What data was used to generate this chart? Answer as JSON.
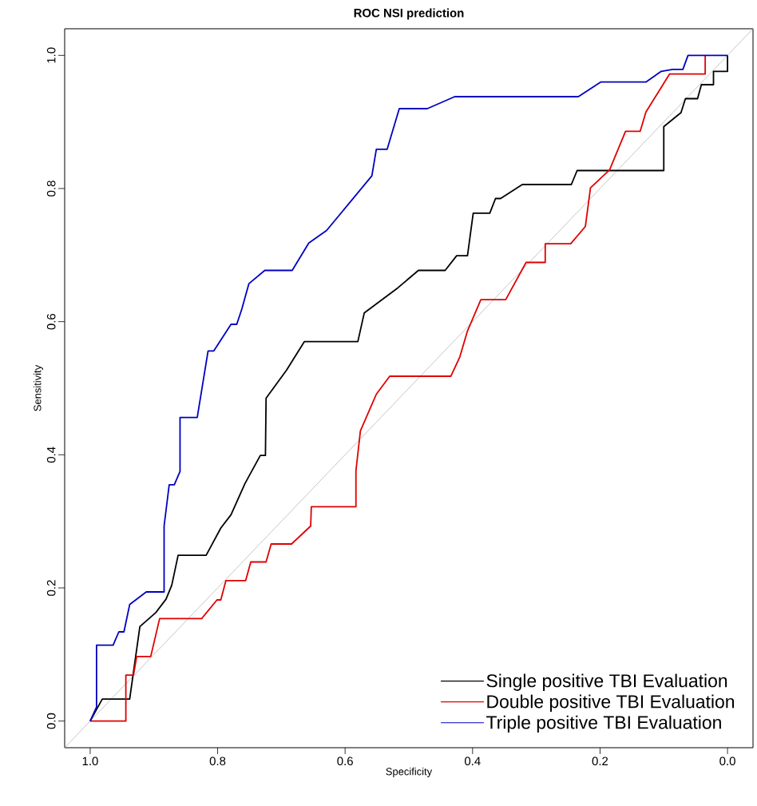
{
  "chart_data": {
    "type": "line",
    "title": "ROC NSI prediction",
    "xlabel": "Specificity",
    "ylabel": "Sensitivity",
    "xlim": [
      1.04,
      -0.04
    ],
    "ylim": [
      -0.04,
      1.04
    ],
    "xticks": [
      {
        "value": 1.0,
        "label": "1.0"
      },
      {
        "value": 0.8,
        "label": "0.8"
      },
      {
        "value": 0.6,
        "label": "0.6"
      },
      {
        "value": 0.4,
        "label": "0.4"
      },
      {
        "value": 0.2,
        "label": "0.2"
      },
      {
        "value": 0.0,
        "label": "0.0"
      }
    ],
    "yticks": [
      {
        "value": 0.0,
        "label": "0.0"
      },
      {
        "value": 0.2,
        "label": "0.2"
      },
      {
        "value": 0.4,
        "label": "0.4"
      },
      {
        "value": 0.6,
        "label": "0.6"
      },
      {
        "value": 0.8,
        "label": "0.8"
      },
      {
        "value": 1.0,
        "label": "1.0"
      }
    ],
    "legend": "bottom right",
    "marker": "none",
    "line_style": "solid",
    "series": [
      {
        "color": "#a0a0a0",
        "x": [
          1.04,
          -0.04
        ],
        "values": [
          -0.04,
          1.04
        ]
      },
      {
        "name": "Single positive TBI Evaluation",
        "color": "#000000",
        "x": [
          1.0,
          0.981,
          0.938,
          0.922,
          0.897,
          0.881,
          0.872,
          0.862,
          0.818,
          0.795,
          0.779,
          0.757,
          0.733,
          0.725,
          0.724,
          0.692,
          0.664,
          0.58,
          0.57,
          0.517,
          0.485,
          0.443,
          0.425,
          0.408,
          0.399,
          0.373,
          0.364,
          0.356,
          0.322,
          0.245,
          0.236,
          0.1,
          0.1,
          0.073,
          0.066,
          0.047,
          0.041,
          0.022,
          0.022,
          0.0,
          0.0
        ],
        "values": [
          0.0,
          0.033,
          0.033,
          0.142,
          0.163,
          0.183,
          0.204,
          0.249,
          0.249,
          0.29,
          0.31,
          0.357,
          0.399,
          0.399,
          0.485,
          0.527,
          0.57,
          0.57,
          0.613,
          0.651,
          0.677,
          0.677,
          0.699,
          0.699,
          0.763,
          0.763,
          0.785,
          0.785,
          0.806,
          0.806,
          0.827,
          0.827,
          0.893,
          0.914,
          0.935,
          0.935,
          0.956,
          0.956,
          0.976,
          0.976,
          1.0
        ]
      },
      {
        "name": "Double positive TBI Evaluation",
        "color": "#e00000",
        "x": [
          1.0,
          0.944,
          0.944,
          0.932,
          0.927,
          0.905,
          0.891,
          0.825,
          0.801,
          0.795,
          0.787,
          0.756,
          0.748,
          0.724,
          0.716,
          0.684,
          0.654,
          0.653,
          0.583,
          0.583,
          0.576,
          0.551,
          0.53,
          0.434,
          0.42,
          0.408,
          0.387,
          0.348,
          0.316,
          0.286,
          0.286,
          0.246,
          0.223,
          0.215,
          0.185,
          0.16,
          0.137,
          0.128,
          0.091,
          0.035,
          0.035
        ],
        "values": [
          0.0,
          0.0,
          0.069,
          0.069,
          0.097,
          0.097,
          0.154,
          0.154,
          0.182,
          0.182,
          0.211,
          0.211,
          0.239,
          0.239,
          0.266,
          0.266,
          0.293,
          0.322,
          0.322,
          0.376,
          0.436,
          0.491,
          0.518,
          0.518,
          0.547,
          0.586,
          0.633,
          0.633,
          0.689,
          0.689,
          0.717,
          0.717,
          0.743,
          0.801,
          0.828,
          0.886,
          0.886,
          0.915,
          0.972,
          0.972,
          1.0
        ]
      },
      {
        "name": "Triple positive TBI Evaluation",
        "color": "#0000c0",
        "x": [
          1.0,
          0.99,
          0.99,
          0.964,
          0.955,
          0.947,
          0.938,
          0.912,
          0.884,
          0.884,
          0.876,
          0.868,
          0.859,
          0.859,
          0.832,
          0.815,
          0.806,
          0.779,
          0.77,
          0.762,
          0.751,
          0.726,
          0.683,
          0.657,
          0.629,
          0.558,
          0.551,
          0.534,
          0.515,
          0.471,
          0.428,
          0.234,
          0.199,
          0.128,
          0.104,
          0.086,
          0.07,
          0.062,
          0.0
        ],
        "values": [
          0.0,
          0.021,
          0.114,
          0.114,
          0.134,
          0.134,
          0.175,
          0.194,
          0.194,
          0.293,
          0.355,
          0.355,
          0.375,
          0.456,
          0.456,
          0.556,
          0.556,
          0.596,
          0.596,
          0.619,
          0.657,
          0.677,
          0.677,
          0.718,
          0.737,
          0.819,
          0.859,
          0.859,
          0.92,
          0.92,
          0.938,
          0.938,
          0.96,
          0.96,
          0.976,
          0.979,
          0.979,
          1.0,
          1.0
        ]
      }
    ]
  }
}
